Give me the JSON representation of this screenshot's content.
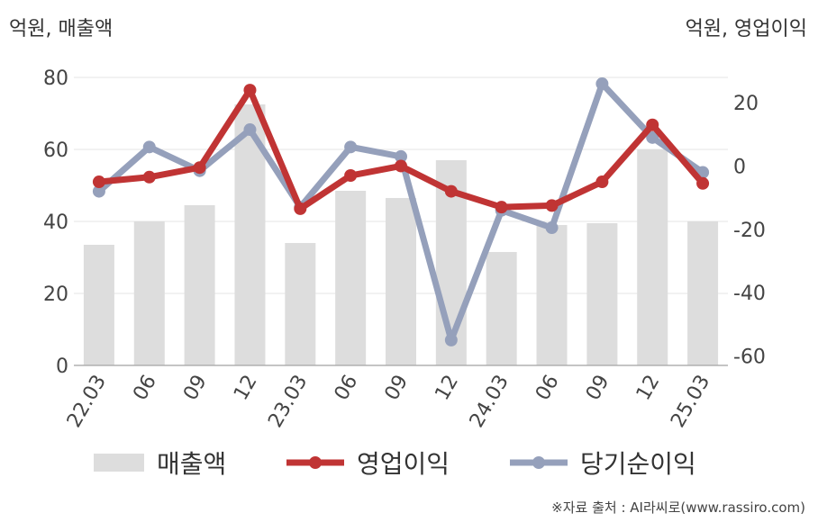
{
  "units": {
    "left": "억원, 매출액",
    "right": "억원, 영업이익"
  },
  "legend": {
    "revenue": "매출액",
    "operating": "영업이익",
    "net": "당기순이익"
  },
  "source": "※자료 출처 : AI라씨로(www.rassiro.com)",
  "colors": {
    "revenue": "#dddddd",
    "operating": "#c03434",
    "net": "#95a0bb"
  },
  "chart_data": {
    "type": "bar+line",
    "categories": [
      "22.03",
      "06",
      "09",
      "12",
      "23.03",
      "06",
      "09",
      "12",
      "24.03",
      "06",
      "09",
      "12",
      "25.03"
    ],
    "left_axis": {
      "ylim": [
        0,
        80
      ],
      "ticks": [
        0,
        20,
        40,
        60,
        80
      ]
    },
    "right_axis": {
      "ylim": [
        -63,
        28
      ],
      "ticks": [
        -60,
        -40,
        -20,
        0,
        20
      ]
    },
    "series": [
      {
        "name": "매출액",
        "kind": "bar",
        "axis": "left",
        "values": [
          33.5,
          40,
          44.5,
          72.5,
          34,
          48.5,
          46.5,
          57,
          31.5,
          39,
          39.5,
          60,
          40
        ]
      },
      {
        "name": "영업이익",
        "kind": "line",
        "axis": "right",
        "values": [
          -5,
          -3.5,
          -0.5,
          24,
          -13.5,
          -3,
          0,
          -8,
          -13,
          -12.5,
          -5,
          13,
          -5.5
        ]
      },
      {
        "name": "당기순이익",
        "kind": "line",
        "axis": "right",
        "values": [
          -8,
          6,
          -1.5,
          11.5,
          -13,
          6,
          3,
          -55,
          -14,
          -19.5,
          26,
          9,
          -2
        ]
      }
    ],
    "grid": true,
    "legend_position": "bottom"
  }
}
